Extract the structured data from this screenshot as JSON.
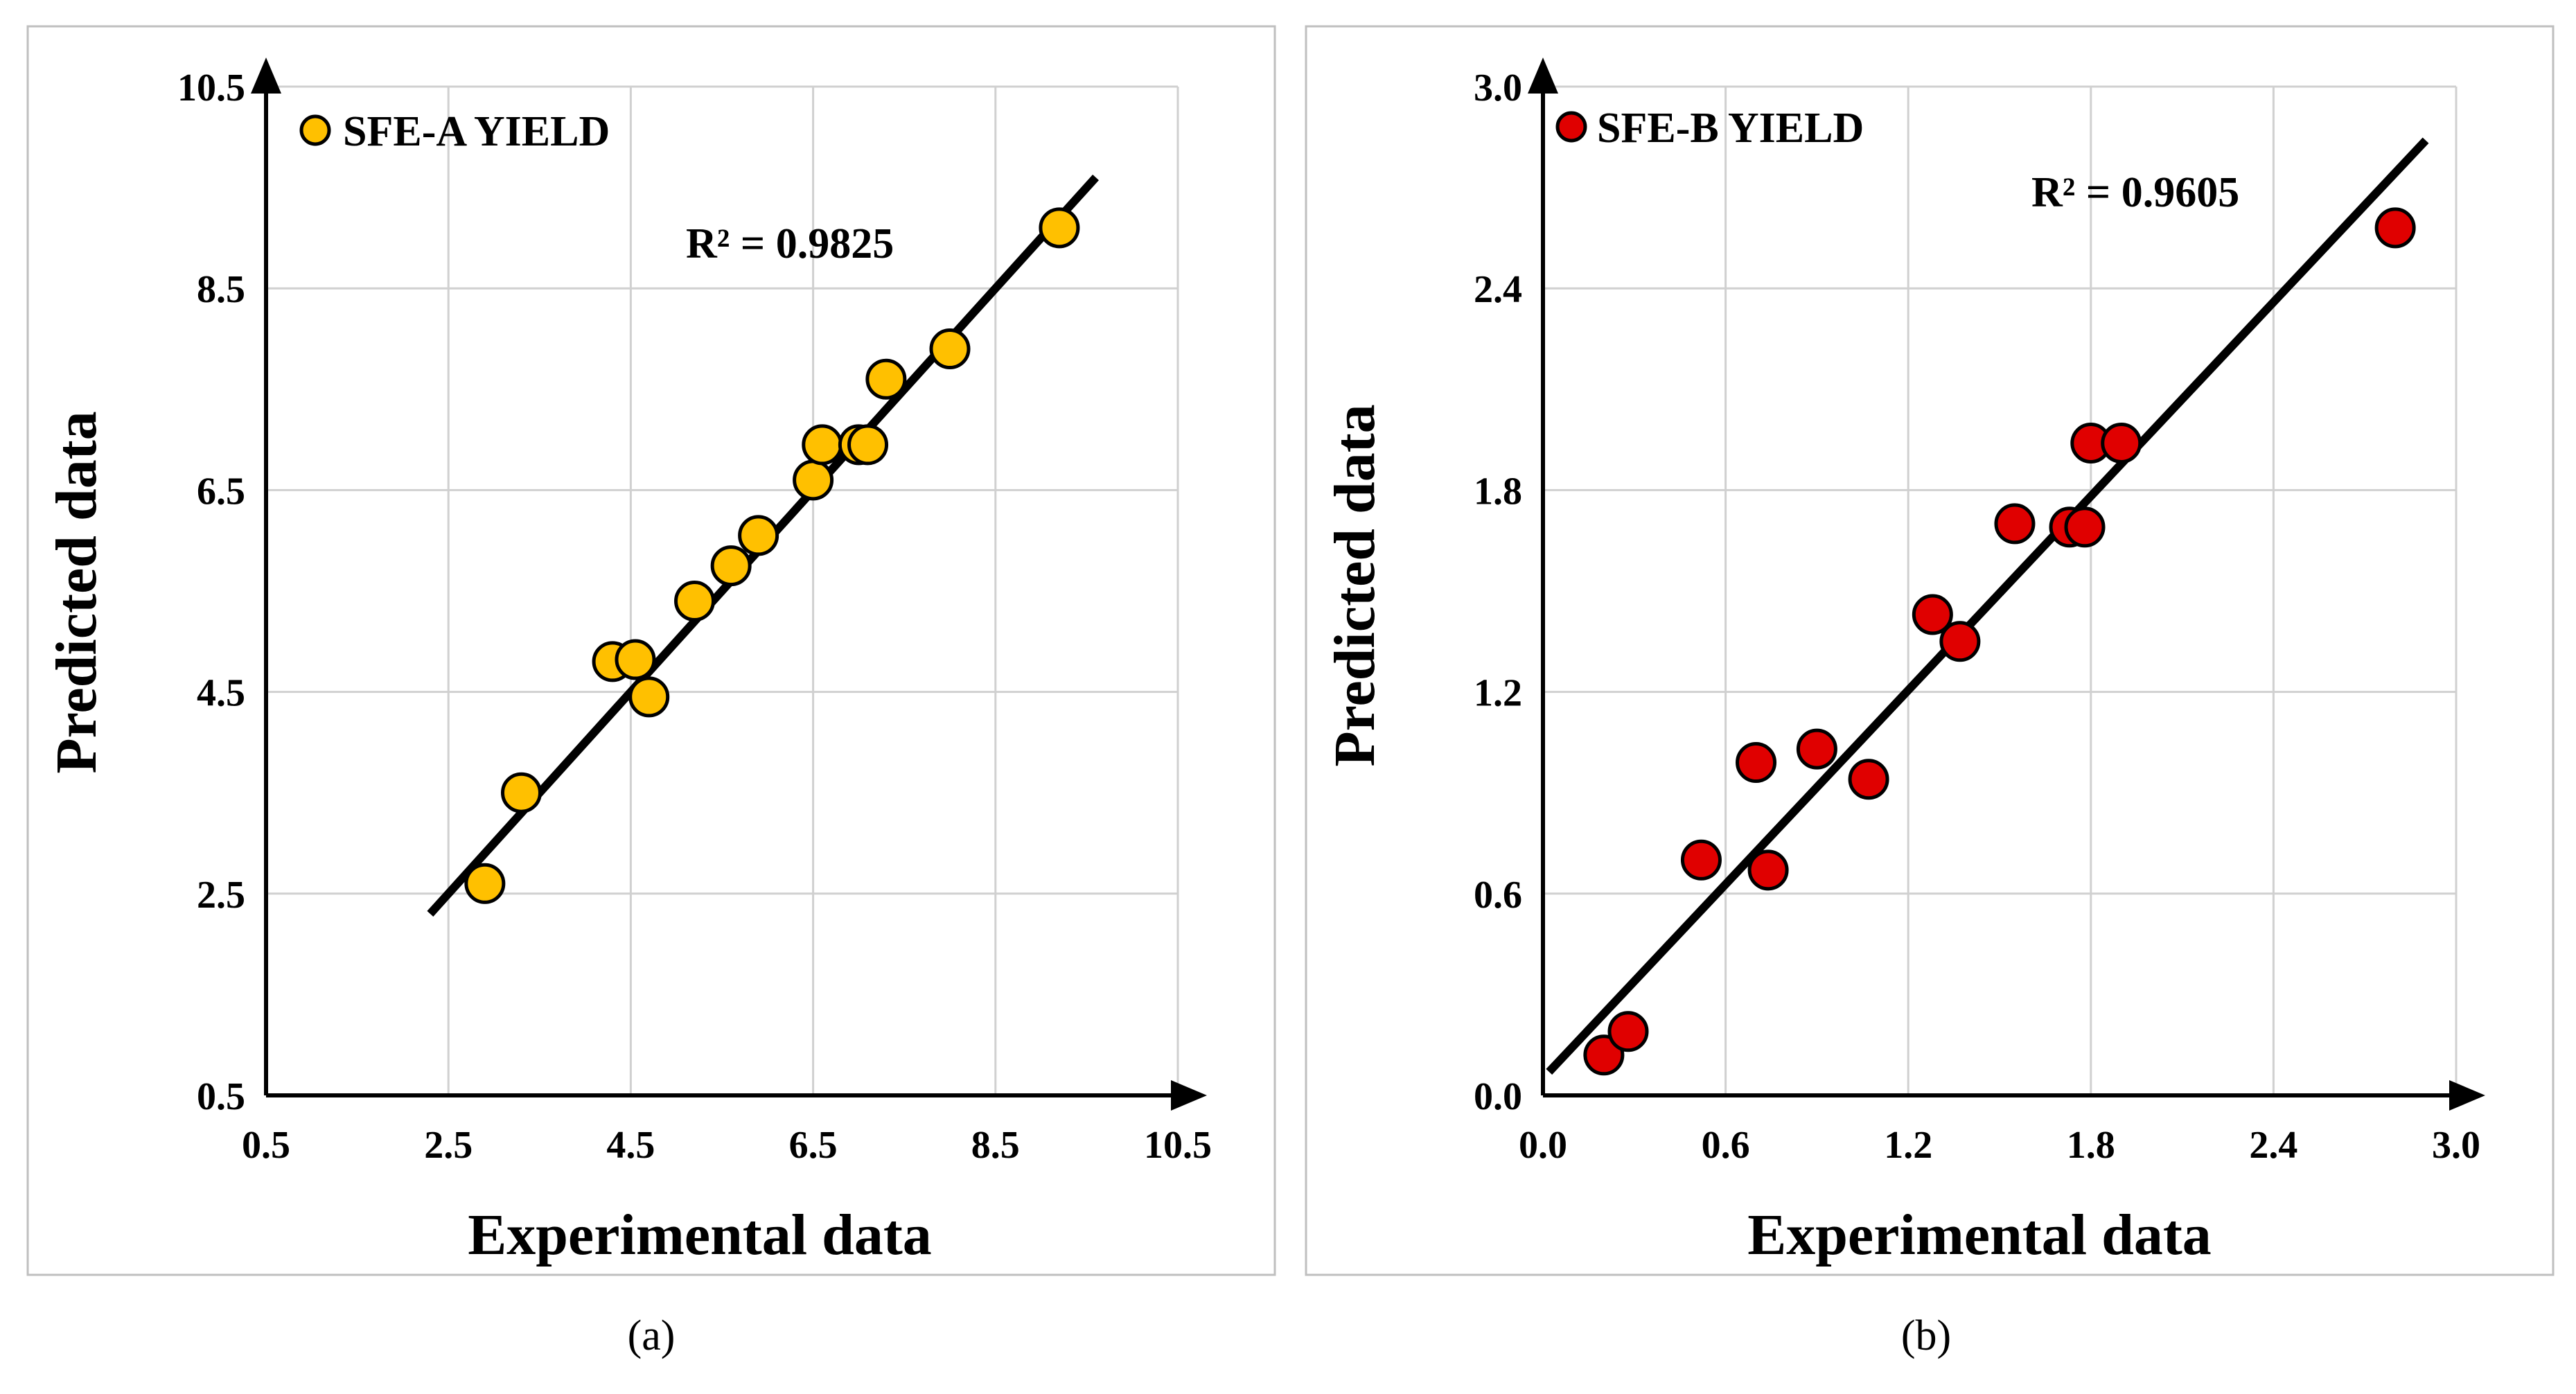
{
  "chart_data": [
    {
      "type": "scatter",
      "panel_label": "(a)",
      "legend": "SFE-A YIELD",
      "color": "#FFC000",
      "xlabel": "Experimental data",
      "ylabel": "Predicted data",
      "xlim": [
        0.5,
        10.5
      ],
      "ylim": [
        0.5,
        10.5
      ],
      "xticks": [
        "0.5",
        "2.5",
        "4.5",
        "6.5",
        "8.5",
        "10.5"
      ],
      "yticks": [
        "0.5",
        "2.5",
        "4.5",
        "6.5",
        "8.5",
        "10.5"
      ],
      "xtick_values": [
        0.5,
        2.5,
        4.5,
        6.5,
        8.5,
        10.5
      ],
      "ytick_values": [
        0.5,
        2.5,
        4.5,
        6.5,
        8.5,
        10.5
      ],
      "annotation": "R² = 0.9825",
      "trendline": [
        [
          2.3,
          2.3
        ],
        [
          9.6,
          9.6
        ]
      ],
      "points": [
        [
          2.9,
          2.6
        ],
        [
          3.3,
          3.5
        ],
        [
          4.3,
          4.8
        ],
        [
          4.55,
          4.82
        ],
        [
          4.7,
          4.45
        ],
        [
          5.2,
          5.4
        ],
        [
          5.6,
          5.75
        ],
        [
          5.9,
          6.05
        ],
        [
          6.5,
          6.6
        ],
        [
          6.6,
          6.95
        ],
        [
          7.0,
          6.95
        ],
        [
          7.1,
          6.95
        ],
        [
          7.3,
          7.6
        ],
        [
          8.0,
          7.9
        ],
        [
          9.2,
          9.1
        ]
      ]
    },
    {
      "type": "scatter",
      "panel_label": "(b)",
      "legend": "SFE-B YIELD",
      "color": "#E00000",
      "xlabel": "Experimental data",
      "ylabel": "Predicted data",
      "xlim": [
        0.0,
        3.0
      ],
      "ylim": [
        0.0,
        3.0
      ],
      "xticks": [
        "0.0",
        "0.6",
        "1.2",
        "1.8",
        "2.4",
        "3.0"
      ],
      "yticks": [
        "0.0",
        "0.6",
        "1.2",
        "1.8",
        "2.4",
        "3.0"
      ],
      "xtick_values": [
        0.0,
        0.6,
        1.2,
        1.8,
        2.4,
        3.0
      ],
      "ytick_values": [
        0.0,
        0.6,
        1.2,
        1.8,
        2.4,
        3.0
      ],
      "annotation": "R² = 0.9605",
      "trendline": [
        [
          0.02,
          0.07
        ],
        [
          2.9,
          2.84
        ]
      ],
      "points": [
        [
          0.2,
          0.12
        ],
        [
          0.28,
          0.19
        ],
        [
          0.52,
          0.7
        ],
        [
          0.7,
          0.99
        ],
        [
          0.74,
          0.67
        ],
        [
          0.9,
          1.03
        ],
        [
          1.07,
          0.94
        ],
        [
          1.28,
          1.43
        ],
        [
          1.37,
          1.35
        ],
        [
          1.55,
          1.7
        ],
        [
          1.73,
          1.69
        ],
        [
          1.78,
          1.69
        ],
        [
          1.8,
          1.94
        ],
        [
          1.9,
          1.94
        ],
        [
          2.8,
          2.58
        ]
      ]
    }
  ]
}
